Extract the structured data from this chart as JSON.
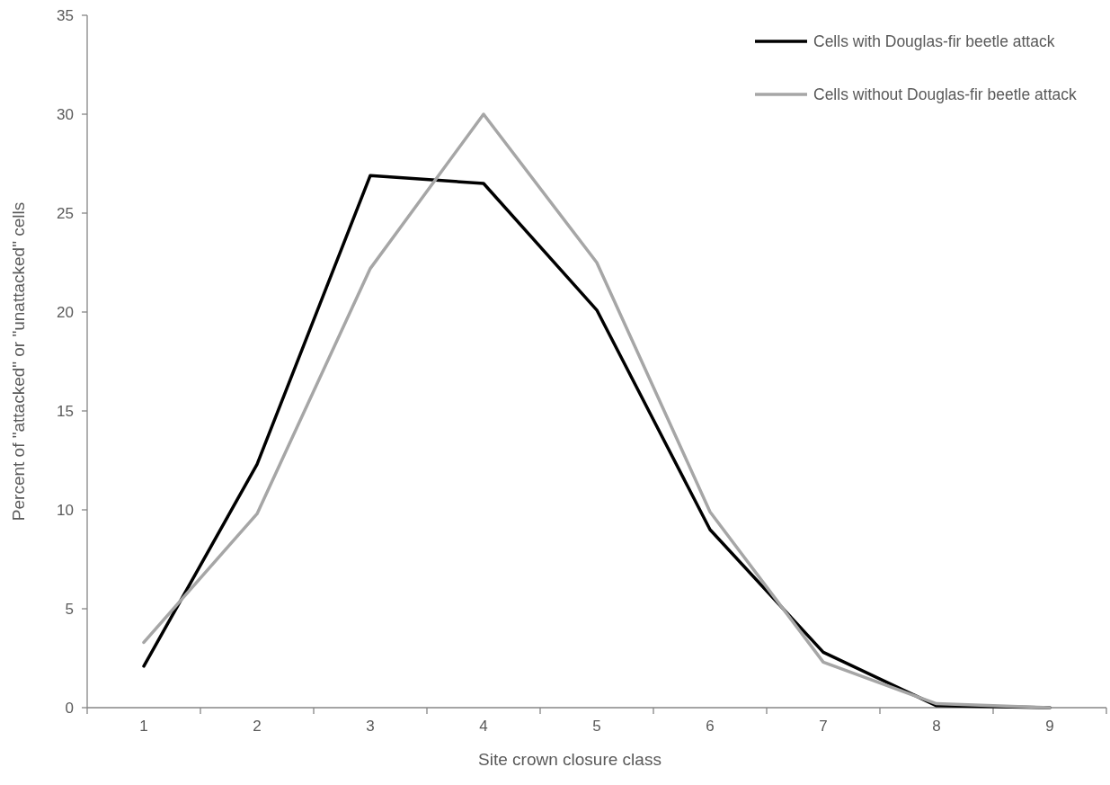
{
  "chart_data": {
    "type": "line",
    "xlabel": "Site crown closure class",
    "ylabel": "Percent of \"attacked\" or \"unattacked\" cells",
    "categories": [
      "1",
      "2",
      "3",
      "4",
      "5",
      "6",
      "7",
      "8",
      "9"
    ],
    "series": [
      {
        "name": "Cells with Douglas-fir beetle attack",
        "color": "#000000",
        "values": [
          2.1,
          12.3,
          26.9,
          26.5,
          20.1,
          9.0,
          2.8,
          0.1,
          0.0
        ]
      },
      {
        "name": "Cells without Douglas-fir beetle attack",
        "color": "#a6a6a6",
        "values": [
          3.3,
          9.8,
          22.2,
          30.0,
          22.5,
          9.9,
          2.3,
          0.2,
          0.0
        ]
      }
    ],
    "ylim": [
      0,
      35
    ],
    "yticks": [
      0,
      5,
      10,
      15,
      20,
      25,
      30,
      35
    ],
    "grid": false,
    "legend": "top right",
    "marker": "none",
    "line_style": "solid"
  }
}
